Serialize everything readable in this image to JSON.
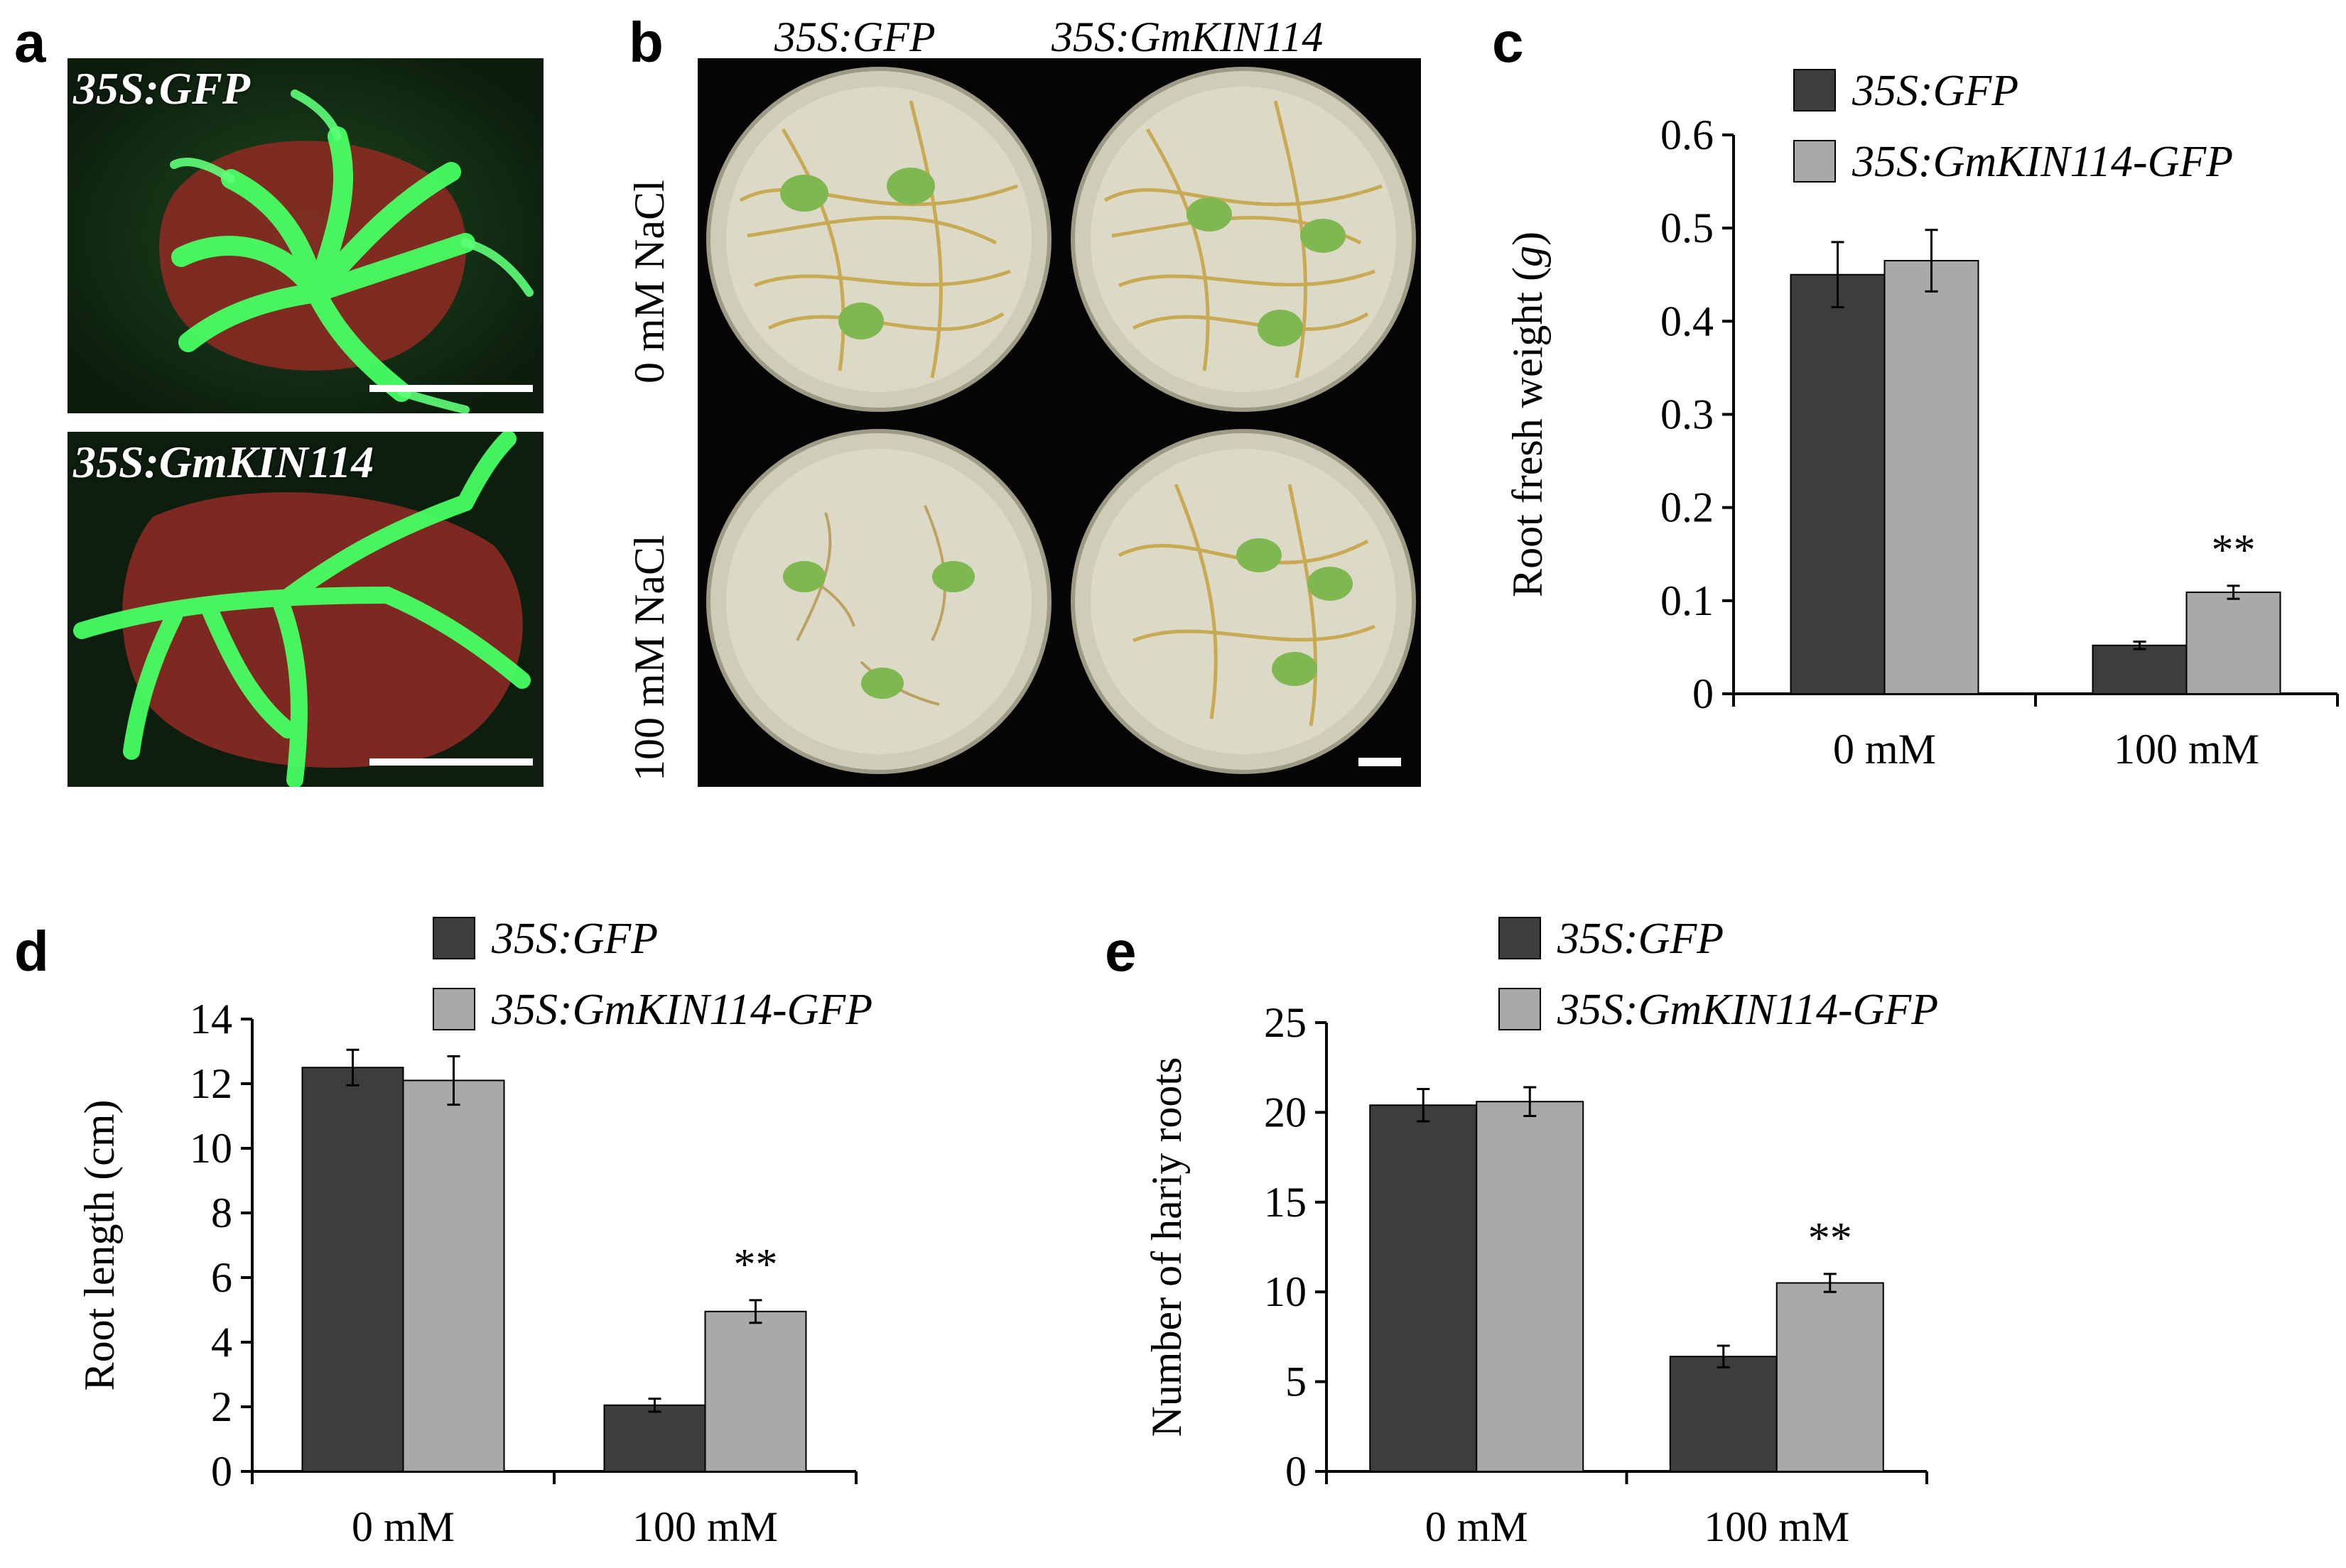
{
  "panels": {
    "a": {
      "letter": "a",
      "top_label": "35S:GFP",
      "bottom_label": "35S:GmKIN114"
    },
    "b": {
      "letter": "b",
      "col1": "35S:GFP",
      "col2": "35S:GmKIN114",
      "row1": "0 mM NaCl",
      "row2": "100 mM NaCl"
    },
    "c": {
      "letter": "c"
    },
    "d": {
      "letter": "d"
    },
    "e": {
      "letter": "e"
    }
  },
  "colors": {
    "series1": "#3d3d3d",
    "series2": "#a9a9a9",
    "photo_bg_a": "#0f2410",
    "photo_bg_b": "#050505",
    "gfp_green": "#3cff5a",
    "tissue_red": "#9c2a24"
  },
  "chart_data": [
    {
      "panel": "c",
      "type": "bar",
      "categories": [
        "0 mM",
        "100 mM"
      ],
      "series": [
        {
          "name": "35S:GFP",
          "values": [
            0.45,
            0.052
          ],
          "errors": [
            0.035,
            0.004
          ]
        },
        {
          "name": "35S:GmKIN114-GFP",
          "values": [
            0.465,
            0.109
          ],
          "errors": [
            0.033,
            0.007
          ]
        }
      ],
      "significance": [
        "",
        "**"
      ],
      "ylabel_pre": "Root fresh weight (",
      "ylabel_unit": "g",
      "ylabel_post": ")",
      "ylim": [
        0,
        0.6
      ],
      "yticks": [
        0,
        0.1,
        0.2,
        0.3,
        0.4,
        0.5,
        0.6
      ],
      "ytick_labels": [
        "0",
        "0.1",
        "0.2",
        "0.3",
        "0.4",
        "0.5",
        "0.6"
      ],
      "legend": "top"
    },
    {
      "panel": "d",
      "type": "bar",
      "categories": [
        "0 mM",
        "100 mM"
      ],
      "series": [
        {
          "name": "35S:GFP",
          "values": [
            12.5,
            2.05
          ],
          "errors": [
            0.55,
            0.2
          ]
        },
        {
          "name": "35S:GmKIN114-GFP",
          "values": [
            12.1,
            4.95
          ],
          "errors": [
            0.75,
            0.35
          ]
        }
      ],
      "significance": [
        "",
        "**"
      ],
      "ylabel": "Root length (cm)",
      "ylim": [
        0,
        14
      ],
      "yticks": [
        0,
        2,
        4,
        6,
        8,
        10,
        12,
        14
      ],
      "ytick_labels": [
        "0",
        "2",
        "4",
        "6",
        "8",
        "10",
        "12",
        "14"
      ],
      "legend": "top"
    },
    {
      "panel": "e",
      "type": "bar",
      "categories": [
        "0 mM",
        "100 mM"
      ],
      "series": [
        {
          "name": "35S:GFP",
          "values": [
            20.4,
            6.4
          ],
          "errors": [
            0.9,
            0.6
          ]
        },
        {
          "name": "35S:GmKIN114-GFP",
          "values": [
            20.6,
            10.5
          ],
          "errors": [
            0.8,
            0.5
          ]
        }
      ],
      "significance": [
        "",
        "**"
      ],
      "ylabel": "Number of hariy roots",
      "ylim": [
        0,
        25
      ],
      "yticks": [
        0,
        5,
        10,
        15,
        20,
        25
      ],
      "ytick_labels": [
        "0",
        "5",
        "10",
        "15",
        "20",
        "25"
      ],
      "legend": "top"
    }
  ]
}
